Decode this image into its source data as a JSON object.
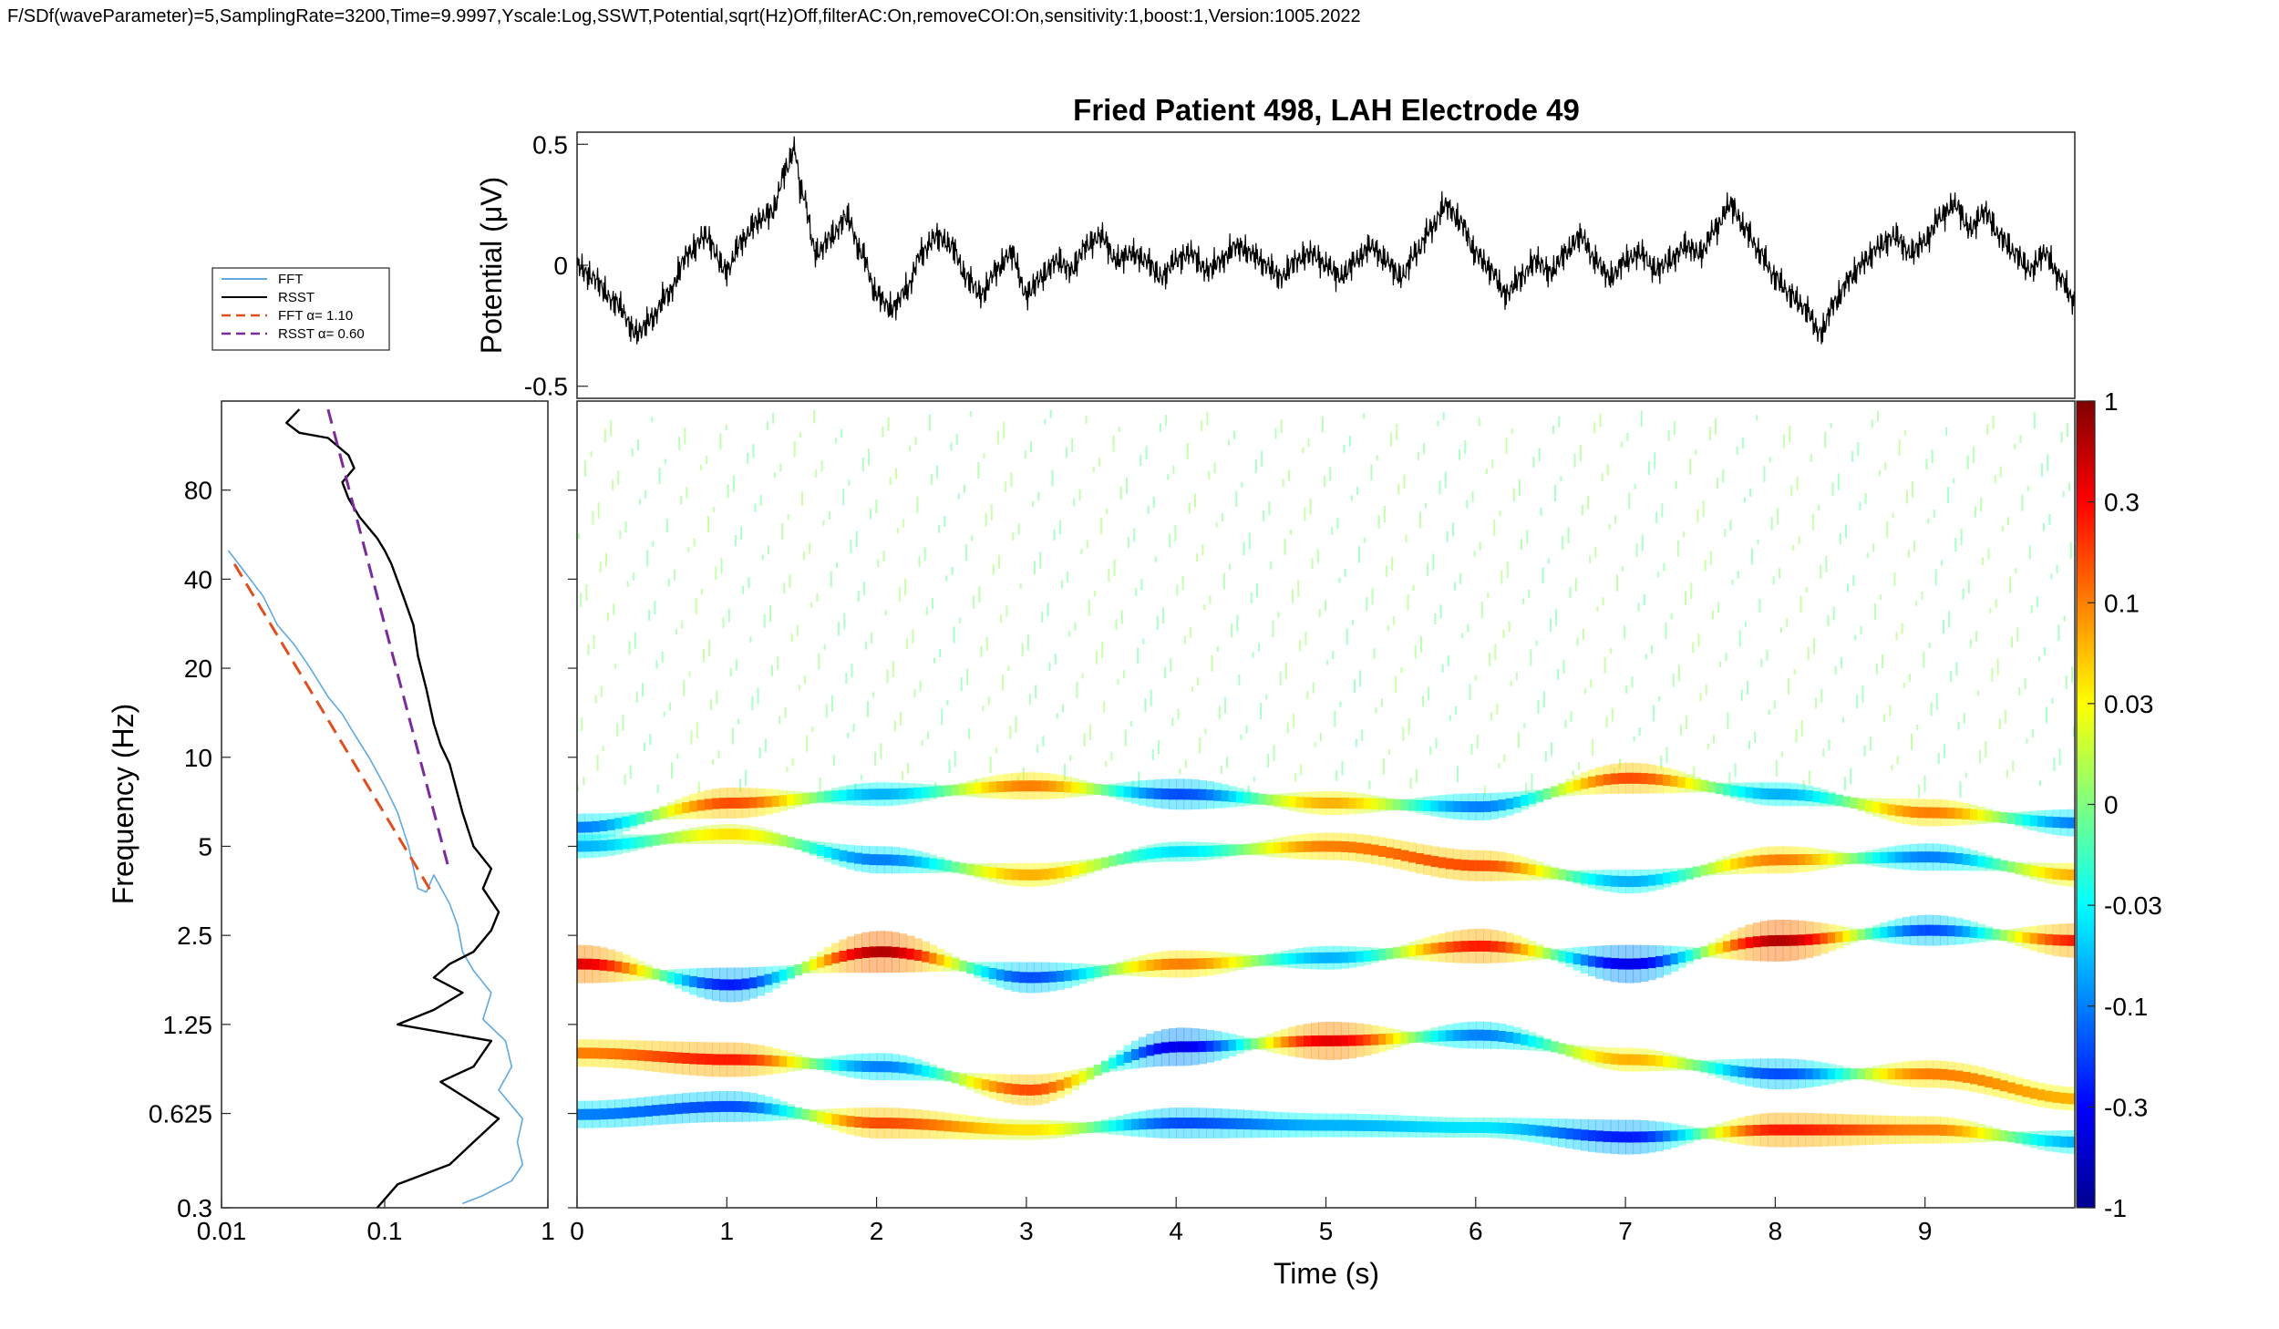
{
  "header_text": "F/SDf(waveParameter)=5,SamplingRate=3200,Time=9.9997,Yscale:Log,SSWT,Potential,sqrt(Hz)Off,filterAC:On,removeCOI:On,sensitivity:1,boost:1,Version:1005.2022",
  "colors": {
    "fft": "#5fa8e0",
    "rsst": "#000000",
    "fft_fit": "#e04e1e",
    "rsst_fit": "#7b2a9c",
    "signal": "#000000",
    "colormap": "jet"
  },
  "chart_data": [
    {
      "type": "line",
      "panel": "potential",
      "title": "Fried Patient 498, LAH Electrode 49",
      "ylabel": "Potential (μV)",
      "xlim": [
        0,
        10
      ],
      "ylim": [
        -0.55,
        0.55
      ],
      "yticks": [
        0.5,
        0,
        -0.5
      ],
      "yticklabels": [
        "0.5",
        "0",
        "-0.5"
      ],
      "series": [
        {
          "values_x": [
            0,
            0.1,
            0.25,
            0.4,
            0.5,
            0.6,
            0.75,
            0.85,
            1.0,
            1.1,
            1.2,
            1.3,
            1.4,
            1.45,
            1.5,
            1.6,
            1.7,
            1.8,
            1.9,
            2.0,
            2.1,
            2.2,
            2.3,
            2.4,
            2.5,
            2.6,
            2.7,
            2.8,
            2.9,
            3.0,
            3.1,
            3.2,
            3.3,
            3.4,
            3.5,
            3.6,
            3.7,
            3.8,
            3.9,
            4.0,
            4.1,
            4.2,
            4.3,
            4.4,
            4.5,
            4.6,
            4.7,
            4.8,
            4.9,
            5.0,
            5.1,
            5.2,
            5.3,
            5.4,
            5.5,
            5.6,
            5.7,
            5.8,
            5.9,
            6.0,
            6.1,
            6.2,
            6.3,
            6.4,
            6.5,
            6.6,
            6.7,
            6.8,
            6.9,
            7.0,
            7.1,
            7.2,
            7.3,
            7.4,
            7.5,
            7.6,
            7.7,
            7.8,
            7.9,
            8.0,
            8.1,
            8.2,
            8.3,
            8.4,
            8.5,
            8.6,
            8.7,
            8.8,
            8.9,
            9.0,
            9.1,
            9.2,
            9.3,
            9.4,
            9.5,
            9.6,
            9.7,
            9.8,
            9.9,
            10.0
          ],
          "values": [
            0.0,
            -0.05,
            -0.15,
            -0.28,
            -0.22,
            -0.12,
            0.05,
            0.12,
            -0.02,
            0.1,
            0.18,
            0.22,
            0.4,
            0.48,
            0.3,
            0.05,
            0.12,
            0.2,
            0.05,
            -0.12,
            -0.18,
            -0.1,
            0.05,
            0.12,
            0.08,
            -0.05,
            -0.12,
            -0.02,
            0.05,
            -0.12,
            -0.05,
            0.02,
            -0.02,
            0.08,
            0.12,
            0.02,
            0.05,
            0.02,
            -0.05,
            0.02,
            0.05,
            -0.02,
            0.02,
            0.08,
            0.05,
            0.0,
            -0.05,
            0.02,
            0.05,
            0.0,
            -0.05,
            0.02,
            0.08,
            0.02,
            -0.05,
            0.05,
            0.15,
            0.25,
            0.18,
            0.05,
            -0.02,
            -0.12,
            -0.05,
            0.02,
            -0.03,
            0.05,
            0.12,
            0.02,
            -0.05,
            0.02,
            0.05,
            -0.02,
            0.02,
            0.08,
            0.05,
            0.15,
            0.25,
            0.15,
            0.05,
            -0.05,
            -0.12,
            -0.18,
            -0.28,
            -0.15,
            -0.05,
            0.02,
            0.08,
            0.12,
            0.05,
            0.1,
            0.2,
            0.25,
            0.15,
            0.22,
            0.12,
            0.05,
            -0.02,
            0.05,
            -0.05,
            -0.15
          ]
        }
      ]
    },
    {
      "type": "line",
      "panel": "spectrum",
      "xscale": "log",
      "yscale": "log",
      "ylabel": "Frequency (Hz)",
      "xlim": [
        0.01,
        1
      ],
      "ylim": [
        0.3,
        160
      ],
      "xticklabels": [
        "0.01",
        "0.1",
        "1"
      ],
      "yticks": [
        0.3,
        0.625,
        1.25,
        2.5,
        5,
        10,
        20,
        40,
        80
      ],
      "yticklabels": [
        "0.3",
        "0.625",
        "1.25",
        "2.5",
        "5",
        "10",
        "20",
        "40",
        "80"
      ],
      "legend": "outside top-left",
      "series": [
        {
          "name": "FFT",
          "x": [
            0.011,
            0.014,
            0.018,
            0.022,
            0.028,
            0.035,
            0.045,
            0.055,
            0.065,
            0.08,
            0.1,
            0.12,
            0.14,
            0.16,
            0.18,
            0.2,
            0.25,
            0.28,
            0.3,
            0.35,
            0.45,
            0.4,
            0.55,
            0.6,
            0.5,
            0.7,
            0.65,
            0.7,
            0.6,
            0.4,
            0.3
          ],
          "y": [
            50,
            42,
            35,
            28,
            24,
            20,
            16,
            14,
            12,
            10,
            8,
            6.5,
            5,
            3.6,
            3.5,
            4.0,
            3.2,
            2.7,
            2.2,
            1.9,
            1.6,
            1.3,
            1.1,
            0.9,
            0.75,
            0.6,
            0.5,
            0.42,
            0.37,
            0.33,
            0.31
          ]
        },
        {
          "name": "RSST",
          "x": [
            0.03,
            0.025,
            0.03,
            0.045,
            0.06,
            0.065,
            0.055,
            0.06,
            0.07,
            0.09,
            0.1,
            0.11,
            0.13,
            0.15,
            0.16,
            0.18,
            0.2,
            0.22,
            0.25,
            0.28,
            0.3,
            0.35,
            0.45,
            0.4,
            0.5,
            0.45,
            0.35,
            0.25,
            0.2,
            0.3,
            0.2,
            0.12,
            0.45,
            0.35,
            0.22,
            0.5,
            0.35,
            0.25,
            0.12,
            0.09
          ],
          "y": [
            150,
            135,
            125,
            120,
            105,
            95,
            85,
            75,
            65,
            55,
            50,
            45,
            35,
            28,
            22,
            17,
            13,
            11,
            9.5,
            7.5,
            6.5,
            5.0,
            4.2,
            3.6,
            3.0,
            2.6,
            2.2,
            2.0,
            1.8,
            1.6,
            1.4,
            1.25,
            1.1,
            0.9,
            0.8,
            0.6,
            0.5,
            0.42,
            0.36,
            0.3
          ]
        },
        {
          "name": "FFT α= 1.10",
          "x": [
            0.012,
            0.2
          ],
          "y": [
            45,
            3.4
          ]
        },
        {
          "name": "RSST α= 0.60",
          "x": [
            0.045,
            0.25
          ],
          "y": [
            150,
            4.1
          ]
        }
      ]
    },
    {
      "type": "heatmap",
      "panel": "sswt",
      "xlabel": "Time (s)",
      "xlim": [
        0,
        10
      ],
      "xticklabels": [
        "0",
        "1",
        "2",
        "3",
        "4",
        "5",
        "6",
        "7",
        "8",
        "9"
      ],
      "yscale": "log",
      "ylim": [
        0.3,
        160
      ],
      "colorbar": {
        "ticklabels": [
          "1",
          "0.3",
          "0.1",
          "0.03",
          "0",
          "-0.03",
          "-0.1",
          "-0.3",
          "-1"
        ],
        "clim": [
          -1,
          1
        ]
      },
      "ridges": [
        {
          "t": [
            0,
            1,
            2,
            3,
            4,
            5,
            6,
            7,
            8,
            9,
            10
          ],
          "f": [
            0.62,
            0.66,
            0.58,
            0.55,
            0.58,
            0.57,
            0.56,
            0.52,
            0.55,
            0.55,
            0.5
          ],
          "amp": [
            -0.5,
            -0.6,
            0.6,
            0.3,
            -0.6,
            -0.4,
            -0.3,
            -0.7,
            0.7,
            0.5,
            -0.4
          ]
        },
        {
          "t": [
            0,
            1,
            2,
            3,
            4,
            5,
            6,
            7,
            8,
            9,
            10
          ],
          "f": [
            1.0,
            0.95,
            0.9,
            0.75,
            1.05,
            1.1,
            1.15,
            0.95,
            0.85,
            0.85,
            0.7
          ],
          "amp": [
            0.5,
            0.7,
            -0.5,
            0.6,
            -0.8,
            0.8,
            -0.5,
            0.4,
            -0.6,
            0.5,
            0.4
          ]
        },
        {
          "t": [
            0,
            1,
            2,
            3,
            4,
            5,
            6,
            7,
            8,
            9,
            10
          ],
          "f": [
            2.0,
            1.7,
            2.2,
            1.8,
            2.0,
            2.1,
            2.3,
            2.0,
            2.4,
            2.6,
            2.4
          ],
          "amp": [
            0.8,
            -0.7,
            0.9,
            -0.6,
            0.5,
            -0.4,
            0.7,
            -0.8,
            0.9,
            -0.6,
            0.7
          ]
        },
        {
          "t": [
            0,
            1,
            2,
            3,
            4,
            5,
            6,
            7,
            8,
            9,
            10
          ],
          "f": [
            5.0,
            5.5,
            4.5,
            4.0,
            4.8,
            5.0,
            4.3,
            3.8,
            4.5,
            4.6,
            4.0
          ],
          "amp": [
            -0.4,
            0.3,
            -0.5,
            0.4,
            -0.3,
            0.5,
            0.6,
            -0.4,
            0.5,
            -0.5,
            0.4
          ]
        },
        {
          "t": [
            0,
            1,
            2,
            3,
            4,
            5,
            6,
            7,
            8,
            9,
            10
          ],
          "f": [
            5.8,
            7.0,
            7.5,
            8.0,
            7.5,
            7.0,
            6.8,
            8.5,
            7.5,
            6.5,
            6.0
          ],
          "amp": [
            -0.5,
            0.6,
            -0.4,
            0.5,
            -0.6,
            0.4,
            -0.5,
            0.6,
            -0.4,
            0.5,
            -0.5
          ]
        }
      ]
    }
  ]
}
